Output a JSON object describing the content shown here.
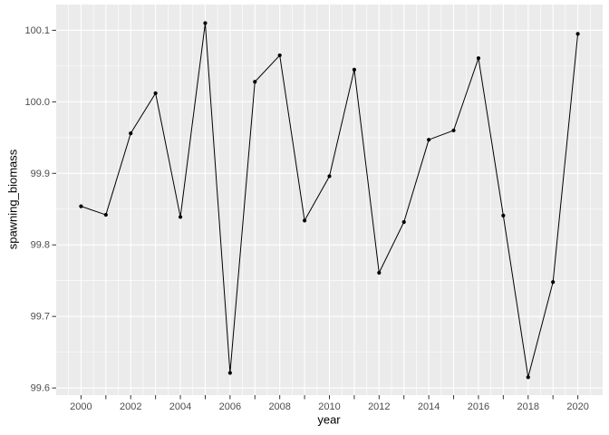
{
  "figure": {
    "background": "#FFFFFF",
    "panel_background": "#EBEBEB",
    "grid_color": "#FFFFFF",
    "axis_text_color": "#4D4D4D",
    "axis_title_color": "#000000",
    "tick_mark_color": "#333333",
    "line_color": "#000000",
    "point_color": "#000000"
  },
  "chart_data": {
    "type": "line",
    "title": "",
    "xlabel": "year",
    "ylabel": "spawning_biomass",
    "x": [
      2000,
      2001,
      2002,
      2003,
      2004,
      2005,
      2006,
      2007,
      2008,
      2009,
      2010,
      2011,
      2012,
      2013,
      2014,
      2015,
      2016,
      2017,
      2018,
      2019,
      2020
    ],
    "series": [
      {
        "name": "spawning_biomass",
        "values": [
          99.854,
          99.842,
          99.956,
          100.012,
          99.839,
          100.11,
          99.621,
          100.028,
          100.065,
          99.834,
          99.896,
          100.045,
          99.761,
          99.832,
          99.947,
          99.96,
          100.061,
          99.841,
          99.615,
          99.748,
          100.095
        ]
      }
    ],
    "xlim": [
      1999,
      2021
    ],
    "ylim": [
      99.59,
      100.136
    ],
    "x_major_tick_values": [
      2000,
      2001,
      2002,
      2003,
      2004,
      2005,
      2006,
      2007,
      2008,
      2009,
      2010,
      2011,
      2012,
      2013,
      2014,
      2015,
      2016,
      2017,
      2018,
      2019,
      2020
    ],
    "x_labeled_ticks": [
      {
        "value": 2000,
        "label": "2000"
      },
      {
        "value": 2002,
        "label": "2002"
      },
      {
        "value": 2004,
        "label": "2004"
      },
      {
        "value": 2006,
        "label": "2006"
      },
      {
        "value": 2008,
        "label": "2008"
      },
      {
        "value": 2010,
        "label": "2010"
      },
      {
        "value": 2012,
        "label": "2012"
      },
      {
        "value": 2014,
        "label": "2014"
      },
      {
        "value": 2016,
        "label": "2016"
      },
      {
        "value": 2018,
        "label": "2018"
      },
      {
        "value": 2020,
        "label": "2020"
      }
    ],
    "x_minor_step": 0.5,
    "y_ticks": [
      {
        "value": 100.1,
        "label": "100.1"
      },
      {
        "value": 100.0,
        "label": "100.0"
      },
      {
        "value": 99.9,
        "label": "99.9"
      },
      {
        "value": 99.8,
        "label": "99.8"
      },
      {
        "value": 99.7,
        "label": "99.7"
      },
      {
        "value": 99.6,
        "label": "99.6"
      }
    ],
    "y_minor_ticks": [
      100.05,
      99.95,
      99.85,
      99.75,
      99.65
    ],
    "grid": "major-and-minor",
    "legend": "none",
    "marker": "filled-circle"
  }
}
